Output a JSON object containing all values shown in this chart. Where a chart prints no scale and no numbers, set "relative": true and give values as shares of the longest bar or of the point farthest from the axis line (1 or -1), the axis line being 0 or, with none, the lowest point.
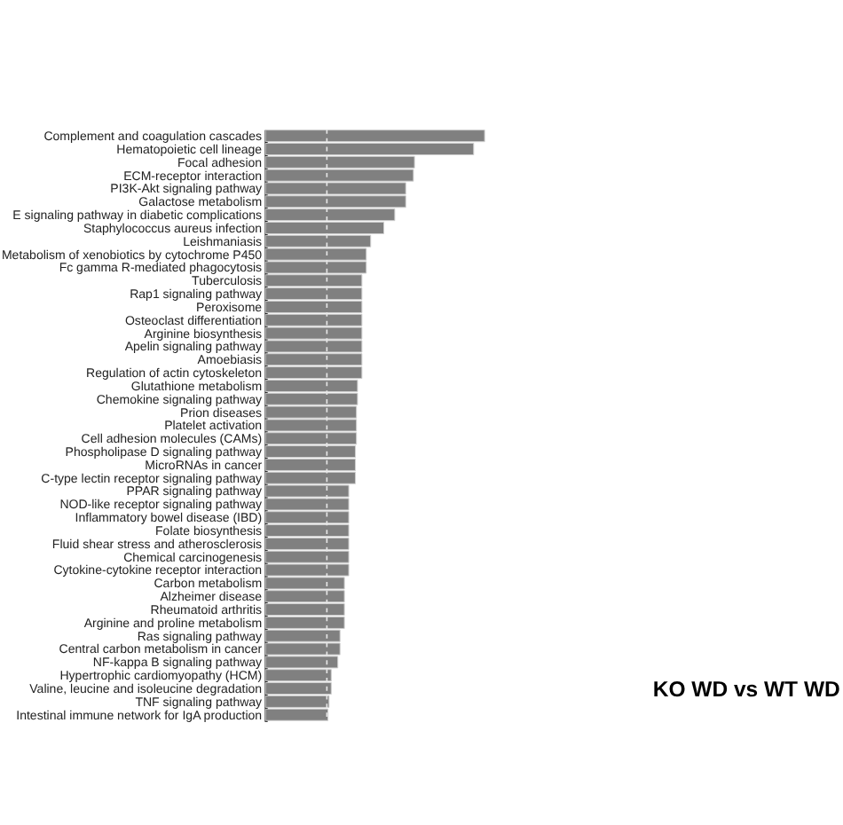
{
  "chart_data": {
    "type": "bar",
    "orientation": "horizontal",
    "relative": true,
    "categories": [
      "Complement and coagulation cascades",
      "Hematopoietic cell lineage",
      "Focal adhesion",
      "ECM-receptor interaction",
      "PI3K-Akt signaling pathway",
      "Galactose metabolism",
      "E signaling pathway in diabetic complications",
      "Staphylococcus aureus infection",
      "Leishmaniasis",
      "Metabolism of xenobiotics by cytochrome P450",
      "Fc gamma R-mediated phagocytosis",
      "Tuberculosis",
      "Rap1 signaling pathway",
      "Peroxisome",
      "Osteoclast differentiation",
      "Arginine biosynthesis",
      "Apelin signaling pathway",
      "Amoebiasis",
      "Regulation of actin cytoskeleton",
      "Glutathione metabolism",
      "Chemokine signaling pathway",
      "Prion diseases",
      "Platelet activation",
      "Cell adhesion molecules (CAMs)",
      "Phospholipase D signaling pathway",
      "MicroRNAs in cancer",
      "C-type lectin receptor signaling pathway",
      "PPAR signaling pathway",
      "NOD-like receptor signaling pathway",
      "Inflammatory bowel disease (IBD)",
      "Folate biosynthesis",
      "Fluid shear stress and atherosclerosis",
      "Chemical carcinogenesis",
      "Cytokine-cytokine receptor interaction",
      "Carbon metabolism",
      "Alzheimer disease",
      "Rheumatoid arthritis",
      "Arginine and proline metabolism",
      "Ras signaling pathway",
      "Central carbon metabolism in cancer",
      "NF-kappa B signaling pathway",
      "Hypertrophic cardiomyopathy (HCM)",
      "Valine, leucine and isoleucine degradation",
      "TNF signaling pathway",
      "Intestinal immune network for IgA production"
    ],
    "values": [
      1.0,
      0.95,
      0.68,
      0.675,
      0.64,
      0.64,
      0.59,
      0.54,
      0.48,
      0.46,
      0.46,
      0.44,
      0.44,
      0.44,
      0.44,
      0.44,
      0.44,
      0.44,
      0.44,
      0.42,
      0.42,
      0.415,
      0.415,
      0.415,
      0.41,
      0.41,
      0.41,
      0.38,
      0.38,
      0.38,
      0.38,
      0.38,
      0.38,
      0.38,
      0.36,
      0.36,
      0.36,
      0.36,
      0.34,
      0.34,
      0.33,
      0.3,
      0.3,
      0.29,
      0.285
    ],
    "color": "#808080",
    "ref_lines": [
      {
        "axis": "x",
        "value": 0.28,
        "color": "#e6e6e6",
        "line_style": "dashed"
      }
    ],
    "annotations": [
      "KO WD vs WT WD"
    ],
    "grid": false
  }
}
